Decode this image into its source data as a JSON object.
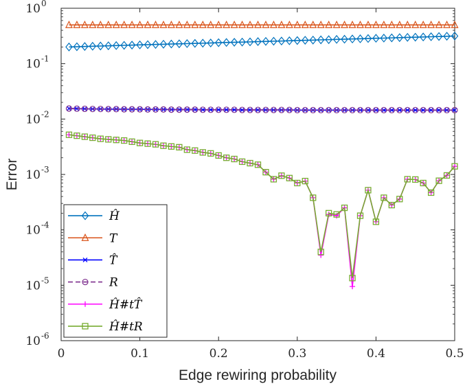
{
  "chart_data": {
    "type": "line",
    "xlabel": "Edge rewiring probability",
    "ylabel": "Error",
    "xlim": [
      0,
      0.5
    ],
    "ylim": [
      1e-06,
      1
    ],
    "yscale": "log",
    "x_ticks": [
      "0",
      "0.1",
      "0.2",
      "0.3",
      "0.4",
      "0.5"
    ],
    "y_ticks": [
      {
        "base": "10",
        "exp": "0"
      },
      {
        "base": "10",
        "exp": "-1"
      },
      {
        "base": "10",
        "exp": "-2"
      },
      {
        "base": "10",
        "exp": "-3"
      },
      {
        "base": "10",
        "exp": "-4"
      },
      {
        "base": "10",
        "exp": "-5"
      },
      {
        "base": "10",
        "exp": "-6"
      }
    ],
    "grid": false,
    "legend_position": "bottom-left",
    "x": [
      0.01,
      0.02,
      0.03,
      0.04,
      0.05,
      0.06,
      0.07,
      0.08,
      0.09,
      0.1,
      0.11,
      0.12,
      0.13,
      0.14,
      0.15,
      0.16,
      0.17,
      0.18,
      0.19,
      0.2,
      0.21,
      0.22,
      0.23,
      0.24,
      0.25,
      0.26,
      0.27,
      0.28,
      0.29,
      0.3,
      0.31,
      0.32,
      0.33,
      0.34,
      0.35,
      0.36,
      0.37,
      0.38,
      0.39,
      0.4,
      0.41,
      0.42,
      0.43,
      0.44,
      0.45,
      0.46,
      0.47,
      0.48,
      0.49,
      0.5
    ],
    "series": [
      {
        "name": "Ĥ",
        "legend_html": "H-hat",
        "color": "#0072BD",
        "marker": "diamond",
        "values": [
          0.2,
          0.202,
          0.204,
          0.206,
          0.208,
          0.21,
          0.212,
          0.214,
          0.216,
          0.218,
          0.22,
          0.222,
          0.224,
          0.226,
          0.228,
          0.23,
          0.232,
          0.234,
          0.236,
          0.239,
          0.241,
          0.243,
          0.245,
          0.247,
          0.25,
          0.252,
          0.254,
          0.256,
          0.259,
          0.261,
          0.264,
          0.266,
          0.269,
          0.271,
          0.274,
          0.276,
          0.279,
          0.281,
          0.284,
          0.287,
          0.289,
          0.292,
          0.295,
          0.298,
          0.3,
          0.303,
          0.306,
          0.309,
          0.312,
          0.315
        ]
      },
      {
        "name": "T",
        "color": "#D95319",
        "marker": "triangle",
        "values": [
          0.5,
          0.5,
          0.5,
          0.5,
          0.5,
          0.5,
          0.5,
          0.5,
          0.5,
          0.5,
          0.5,
          0.5,
          0.5,
          0.5,
          0.5,
          0.5,
          0.5,
          0.5,
          0.5,
          0.5,
          0.5,
          0.5,
          0.5,
          0.5,
          0.5,
          0.5,
          0.5,
          0.5,
          0.5,
          0.5,
          0.5,
          0.5,
          0.5,
          0.5,
          0.5,
          0.5,
          0.5,
          0.5,
          0.5,
          0.5,
          0.5,
          0.5,
          0.5,
          0.5,
          0.5,
          0.5,
          0.5,
          0.5,
          0.5,
          0.5
        ]
      },
      {
        "name": "T̂",
        "color": "#0000FF",
        "marker": "x",
        "values": [
          0.0155,
          0.0154,
          0.0153,
          0.0152,
          0.0152,
          0.0151,
          0.0151,
          0.015,
          0.015,
          0.015,
          0.0149,
          0.0149,
          0.0149,
          0.0148,
          0.0148,
          0.0148,
          0.0148,
          0.0147,
          0.0147,
          0.0147,
          0.0147,
          0.0147,
          0.0146,
          0.0146,
          0.0146,
          0.0146,
          0.0146,
          0.0146,
          0.0146,
          0.0145,
          0.0145,
          0.0145,
          0.0145,
          0.0145,
          0.0145,
          0.0145,
          0.0145,
          0.0145,
          0.0145,
          0.0145,
          0.0145,
          0.0145,
          0.0145,
          0.0145,
          0.0145,
          0.0145,
          0.0145,
          0.0145,
          0.0145,
          0.0145
        ]
      },
      {
        "name": "R",
        "color": "#7E2F8E",
        "marker": "circle",
        "dashed": true,
        "values": [
          0.0155,
          0.0154,
          0.0153,
          0.0152,
          0.0152,
          0.0151,
          0.0151,
          0.015,
          0.015,
          0.015,
          0.0149,
          0.0149,
          0.0149,
          0.0148,
          0.0148,
          0.0148,
          0.0148,
          0.0147,
          0.0147,
          0.0147,
          0.0147,
          0.0147,
          0.0146,
          0.0146,
          0.0146,
          0.0146,
          0.0146,
          0.0146,
          0.0146,
          0.0145,
          0.0145,
          0.0145,
          0.0145,
          0.0145,
          0.0145,
          0.0145,
          0.0145,
          0.0145,
          0.0145,
          0.0145,
          0.0145,
          0.0145,
          0.0145,
          0.0145,
          0.0145,
          0.0145,
          0.0145,
          0.0145,
          0.0145,
          0.0145
        ]
      },
      {
        "name": "Ĥ#tT̂",
        "color": "#FF00FF",
        "marker": "plus",
        "values": [
          0.0052,
          0.005,
          0.0048,
          0.0046,
          0.0044,
          0.0043,
          0.0042,
          0.0041,
          0.0039,
          0.0037,
          0.0036,
          0.0035,
          0.0033,
          0.0032,
          0.0031,
          0.0028,
          0.0027,
          0.0025,
          0.0024,
          0.0022,
          0.002,
          0.0019,
          0.0017,
          0.0016,
          0.0015,
          0.0011,
          0.00082,
          0.00095,
          0.00086,
          0.0007,
          0.00076,
          0.00038,
          3.5e-05,
          0.00019,
          0.00018,
          0.00025,
          9.5e-06,
          0.00018,
          0.00052,
          0.00014,
          0.00038,
          0.00028,
          0.00036,
          0.00082,
          0.00081,
          0.0007,
          0.00047,
          0.00077,
          0.00096,
          0.0014
        ]
      },
      {
        "name": "Ĥ#tR",
        "color": "#77AC30",
        "marker": "square",
        "values": [
          0.0052,
          0.005,
          0.0048,
          0.0046,
          0.0044,
          0.0043,
          0.0042,
          0.0041,
          0.0039,
          0.0037,
          0.0036,
          0.0035,
          0.0033,
          0.0032,
          0.0031,
          0.0028,
          0.0027,
          0.0025,
          0.0024,
          0.0022,
          0.002,
          0.0019,
          0.0017,
          0.0016,
          0.0015,
          0.0011,
          0.00082,
          0.00095,
          0.00086,
          0.0007,
          0.00076,
          0.00038,
          4e-05,
          0.0002,
          0.00019,
          0.00025,
          1.35e-05,
          0.00018,
          0.00052,
          0.00014,
          0.00038,
          0.00028,
          0.00036,
          0.00082,
          0.00081,
          0.0007,
          0.00047,
          0.00077,
          0.00096,
          0.0014
        ]
      }
    ]
  }
}
